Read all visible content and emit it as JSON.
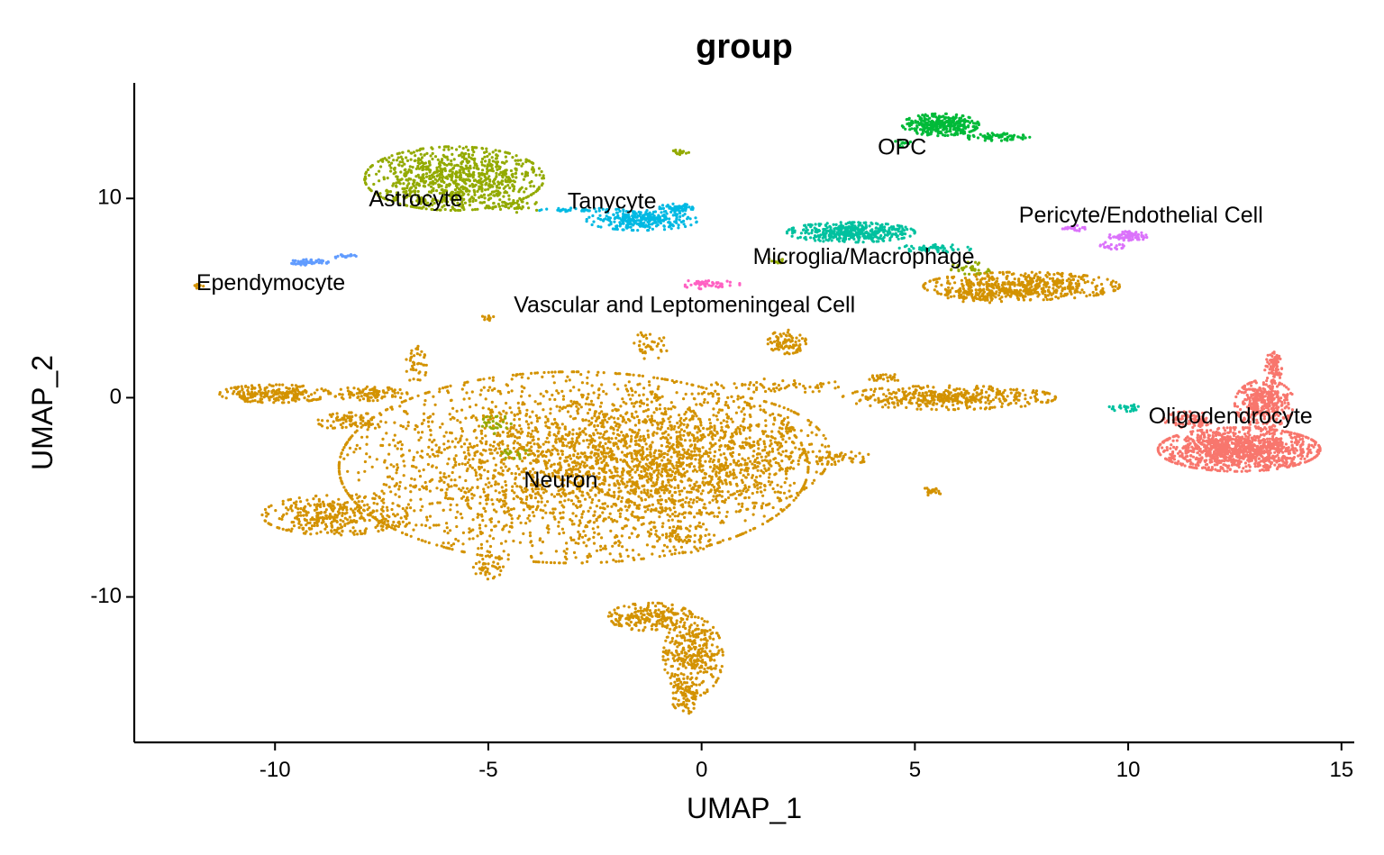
{
  "chart_data": {
    "type": "scatter",
    "title": "group",
    "xlabel": "UMAP_1",
    "ylabel": "UMAP_2",
    "xlim": [
      -13.3,
      15.3
    ],
    "ylim": [
      -17.3,
      15.8
    ],
    "xticks": [
      -10,
      -5,
      0,
      5,
      10,
      15
    ],
    "xtick_labels": [
      "-10",
      "-5",
      "0",
      "5",
      "10",
      "15"
    ],
    "yticks": [
      -10,
      0,
      10
    ],
    "ytick_labels": [
      "-10",
      "0",
      "10"
    ],
    "grid": false,
    "legend": "none",
    "series": [
      {
        "name": "Neuron",
        "color": "#D39200",
        "label_at": [
          -3.3,
          -4.2
        ],
        "regions": [
          {
            "cx": -3.0,
            "cy": -3.5,
            "rx": 5.5,
            "ry": 4.8,
            "n": 2600
          },
          {
            "cx": 0.0,
            "cy": -2.8,
            "rx": 3.0,
            "ry": 3.0,
            "n": 900
          },
          {
            "cx": -8.6,
            "cy": -5.9,
            "rx": 1.7,
            "ry": 1.0,
            "n": 350
          },
          {
            "cx": -10.0,
            "cy": 0.2,
            "rx": 1.3,
            "ry": 0.45,
            "n": 240
          },
          {
            "cx": -7.8,
            "cy": 0.2,
            "rx": 0.9,
            "ry": 0.35,
            "n": 100
          },
          {
            "cx": -8.2,
            "cy": -1.2,
            "rx": 0.8,
            "ry": 0.45,
            "n": 80
          },
          {
            "cx": -6.7,
            "cy": 1.6,
            "rx": 0.25,
            "ry": 1.0,
            "n": 40
          },
          {
            "cx": 1.8,
            "cy": 0.6,
            "rx": 1.6,
            "ry": 0.35,
            "n": 60
          },
          {
            "cx": 3.1,
            "cy": -3.0,
            "rx": 0.9,
            "ry": 0.35,
            "n": 60
          },
          {
            "cx": -0.5,
            "cy": -7.0,
            "rx": 0.8,
            "ry": 0.8,
            "n": 80
          },
          {
            "cx": -5.0,
            "cy": -8.5,
            "rx": 0.35,
            "ry": 0.6,
            "n": 40
          },
          {
            "cx": -1.2,
            "cy": 2.6,
            "rx": 0.4,
            "ry": 0.8,
            "n": 40
          },
          {
            "cx": -0.2,
            "cy": -13.0,
            "rx": 0.7,
            "ry": 2.0,
            "n": 320
          },
          {
            "cx": -1.2,
            "cy": -11.0,
            "rx": 1.0,
            "ry": 0.7,
            "n": 200
          },
          {
            "cx": -0.4,
            "cy": -15.0,
            "rx": 0.3,
            "ry": 0.9,
            "n": 80
          },
          {
            "cx": 2.0,
            "cy": 2.8,
            "rx": 0.45,
            "ry": 0.6,
            "n": 90
          },
          {
            "cx": 5.8,
            "cy": 0.0,
            "rx": 2.5,
            "ry": 0.6,
            "n": 420
          },
          {
            "cx": 4.3,
            "cy": 1.0,
            "rx": 0.4,
            "ry": 0.2,
            "n": 30
          },
          {
            "cx": 5.4,
            "cy": -4.7,
            "rx": 0.25,
            "ry": 0.2,
            "n": 20
          },
          {
            "cx": 7.5,
            "cy": 5.6,
            "rx": 2.3,
            "ry": 0.7,
            "n": 520
          },
          {
            "cx": 6.4,
            "cy": 5.1,
            "rx": 1.0,
            "ry": 0.35,
            "n": 80
          },
          {
            "cx": -5.0,
            "cy": 4.0,
            "rx": 0.15,
            "ry": 0.2,
            "n": 10
          },
          {
            "cx": -11.8,
            "cy": 5.6,
            "rx": 0.12,
            "ry": 0.12,
            "n": 8
          }
        ]
      },
      {
        "name": "Astrocyte",
        "color": "#93AA00",
        "label_at": [
          -6.7,
          9.9
        ],
        "regions": [
          {
            "cx": -5.8,
            "cy": 11.0,
            "rx": 2.1,
            "ry": 1.6,
            "n": 900
          },
          {
            "cx": -4.4,
            "cy": 9.6,
            "rx": 0.7,
            "ry": 0.3,
            "n": 40
          },
          {
            "cx": -0.5,
            "cy": 12.3,
            "rx": 0.2,
            "ry": 0.15,
            "n": 15
          },
          {
            "cx": 6.3,
            "cy": 6.5,
            "rx": 0.5,
            "ry": 0.3,
            "n": 35
          },
          {
            "cx": 1.7,
            "cy": 6.9,
            "rx": 0.2,
            "ry": 0.2,
            "n": 10
          },
          {
            "cx": -4.8,
            "cy": -1.3,
            "rx": 0.35,
            "ry": 0.5,
            "n": 30
          },
          {
            "cx": -4.4,
            "cy": -2.8,
            "rx": 0.35,
            "ry": 0.3,
            "n": 20
          }
        ]
      },
      {
        "name": "Tanycyte",
        "color": "#00B9E3",
        "label_at": [
          -2.1,
          9.8
        ],
        "regions": [
          {
            "cx": -1.4,
            "cy": 8.9,
            "rx": 1.3,
            "ry": 0.5,
            "n": 280
          },
          {
            "cx": -2.8,
            "cy": 9.4,
            "rx": 1.0,
            "ry": 0.12,
            "n": 40
          },
          {
            "cx": -0.6,
            "cy": 9.5,
            "rx": 0.4,
            "ry": 0.25,
            "n": 60
          }
        ]
      },
      {
        "name": "OPC",
        "color": "#00BA38",
        "label_at": [
          4.7,
          12.5
        ],
        "regions": [
          {
            "cx": 5.6,
            "cy": 13.7,
            "rx": 0.9,
            "ry": 0.55,
            "n": 320
          },
          {
            "cx": 6.9,
            "cy": 13.1,
            "rx": 0.8,
            "ry": 0.2,
            "n": 70
          },
          {
            "cx": 4.7,
            "cy": 12.8,
            "rx": 0.2,
            "ry": 0.2,
            "n": 10
          }
        ]
      },
      {
        "name": "Microglia/Macrophage",
        "color": "#00C19F",
        "label_at": [
          3.8,
          7.0
        ],
        "regions": [
          {
            "cx": 3.5,
            "cy": 8.3,
            "rx": 1.5,
            "ry": 0.5,
            "n": 420
          },
          {
            "cx": 5.5,
            "cy": 7.5,
            "rx": 0.9,
            "ry": 0.2,
            "n": 60
          },
          {
            "cx": 9.9,
            "cy": -0.5,
            "rx": 0.35,
            "ry": 0.2,
            "n": 25
          }
        ]
      },
      {
        "name": "Pericyte/Endothelial Cell",
        "color": "#DB72FB",
        "label_at": [
          10.3,
          9.1
        ],
        "regions": [
          {
            "cx": 10.0,
            "cy": 8.1,
            "rx": 0.45,
            "ry": 0.25,
            "n": 70
          },
          {
            "cx": 8.7,
            "cy": 8.5,
            "rx": 0.3,
            "ry": 0.15,
            "n": 25
          },
          {
            "cx": 9.5,
            "cy": 7.6,
            "rx": 0.4,
            "ry": 0.2,
            "n": 20
          }
        ]
      },
      {
        "name": "Ependymocyte",
        "color": "#619CFF",
        "label_at": [
          -10.1,
          5.7
        ],
        "regions": [
          {
            "cx": -9.2,
            "cy": 6.8,
            "rx": 0.45,
            "ry": 0.15,
            "n": 60
          },
          {
            "cx": -8.4,
            "cy": 7.1,
            "rx": 0.3,
            "ry": 0.1,
            "n": 20
          }
        ]
      },
      {
        "name": "Vascular and Leptomeningeal Cell",
        "color": "#FF61C3",
        "label_at": [
          -0.4,
          4.6
        ],
        "regions": [
          {
            "cx": 0.2,
            "cy": 5.7,
            "rx": 0.7,
            "ry": 0.25,
            "n": 50
          }
        ]
      },
      {
        "name": "Oligodendrocyte",
        "color": "#F8766D",
        "label_at": [
          12.4,
          -1.0
        ],
        "regions": [
          {
            "cx": 12.6,
            "cy": -2.6,
            "rx": 1.9,
            "ry": 1.1,
            "n": 1200
          },
          {
            "cx": 13.2,
            "cy": -0.3,
            "rx": 0.7,
            "ry": 1.2,
            "n": 380
          },
          {
            "cx": 13.4,
            "cy": 1.5,
            "rx": 0.2,
            "ry": 0.8,
            "n": 80
          },
          {
            "cx": 11.4,
            "cy": -1.1,
            "rx": 0.6,
            "ry": 0.4,
            "n": 80
          }
        ]
      }
    ]
  }
}
